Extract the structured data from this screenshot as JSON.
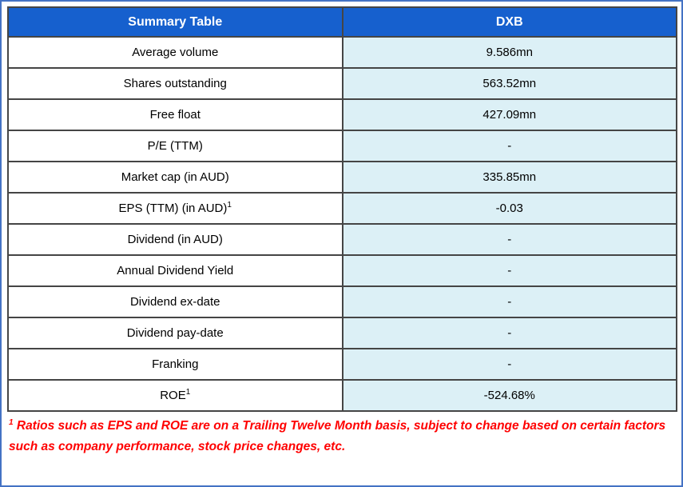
{
  "colors": {
    "frame_border": "#4472C4",
    "header_bg": "#1660CE",
    "header_text": "#FFFFFF",
    "grid_border": "#454545",
    "value_col_bg": "#DCF0F6",
    "footnote_text": "#FF0000",
    "cell_text": "#000000"
  },
  "chart_data": {
    "type": "table",
    "title": "Summary Table",
    "columns": [
      "Summary Table",
      "DXB"
    ],
    "rows": [
      {
        "label": "Average volume",
        "value": "9.586mn"
      },
      {
        "label": "Shares outstanding",
        "value": "563.52mn"
      },
      {
        "label": "Free float",
        "value": "427.09mn"
      },
      {
        "label": "P/E (TTM)",
        "value": "-"
      },
      {
        "label": "Market cap (in AUD)",
        "value": "335.85mn"
      },
      {
        "label": "EPS (TTM) (in AUD)",
        "sup": "1",
        "value": "-0.03"
      },
      {
        "label": "Dividend (in AUD)",
        "value": "-"
      },
      {
        "label": "Annual Dividend Yield",
        "value": "-"
      },
      {
        "label": "Dividend ex-date",
        "value": "-"
      },
      {
        "label": "Dividend pay-date",
        "value": "-"
      },
      {
        "label": "Franking",
        "value": "-"
      },
      {
        "label": "ROE",
        "sup": "1",
        "value": "-524.68%"
      }
    ]
  },
  "footnote": {
    "sup": "1",
    "text": " Ratios such as EPS and ROE are on a Trailing Twelve Month basis, subject to change based on certain factors such as company performance, stock price changes, etc."
  }
}
